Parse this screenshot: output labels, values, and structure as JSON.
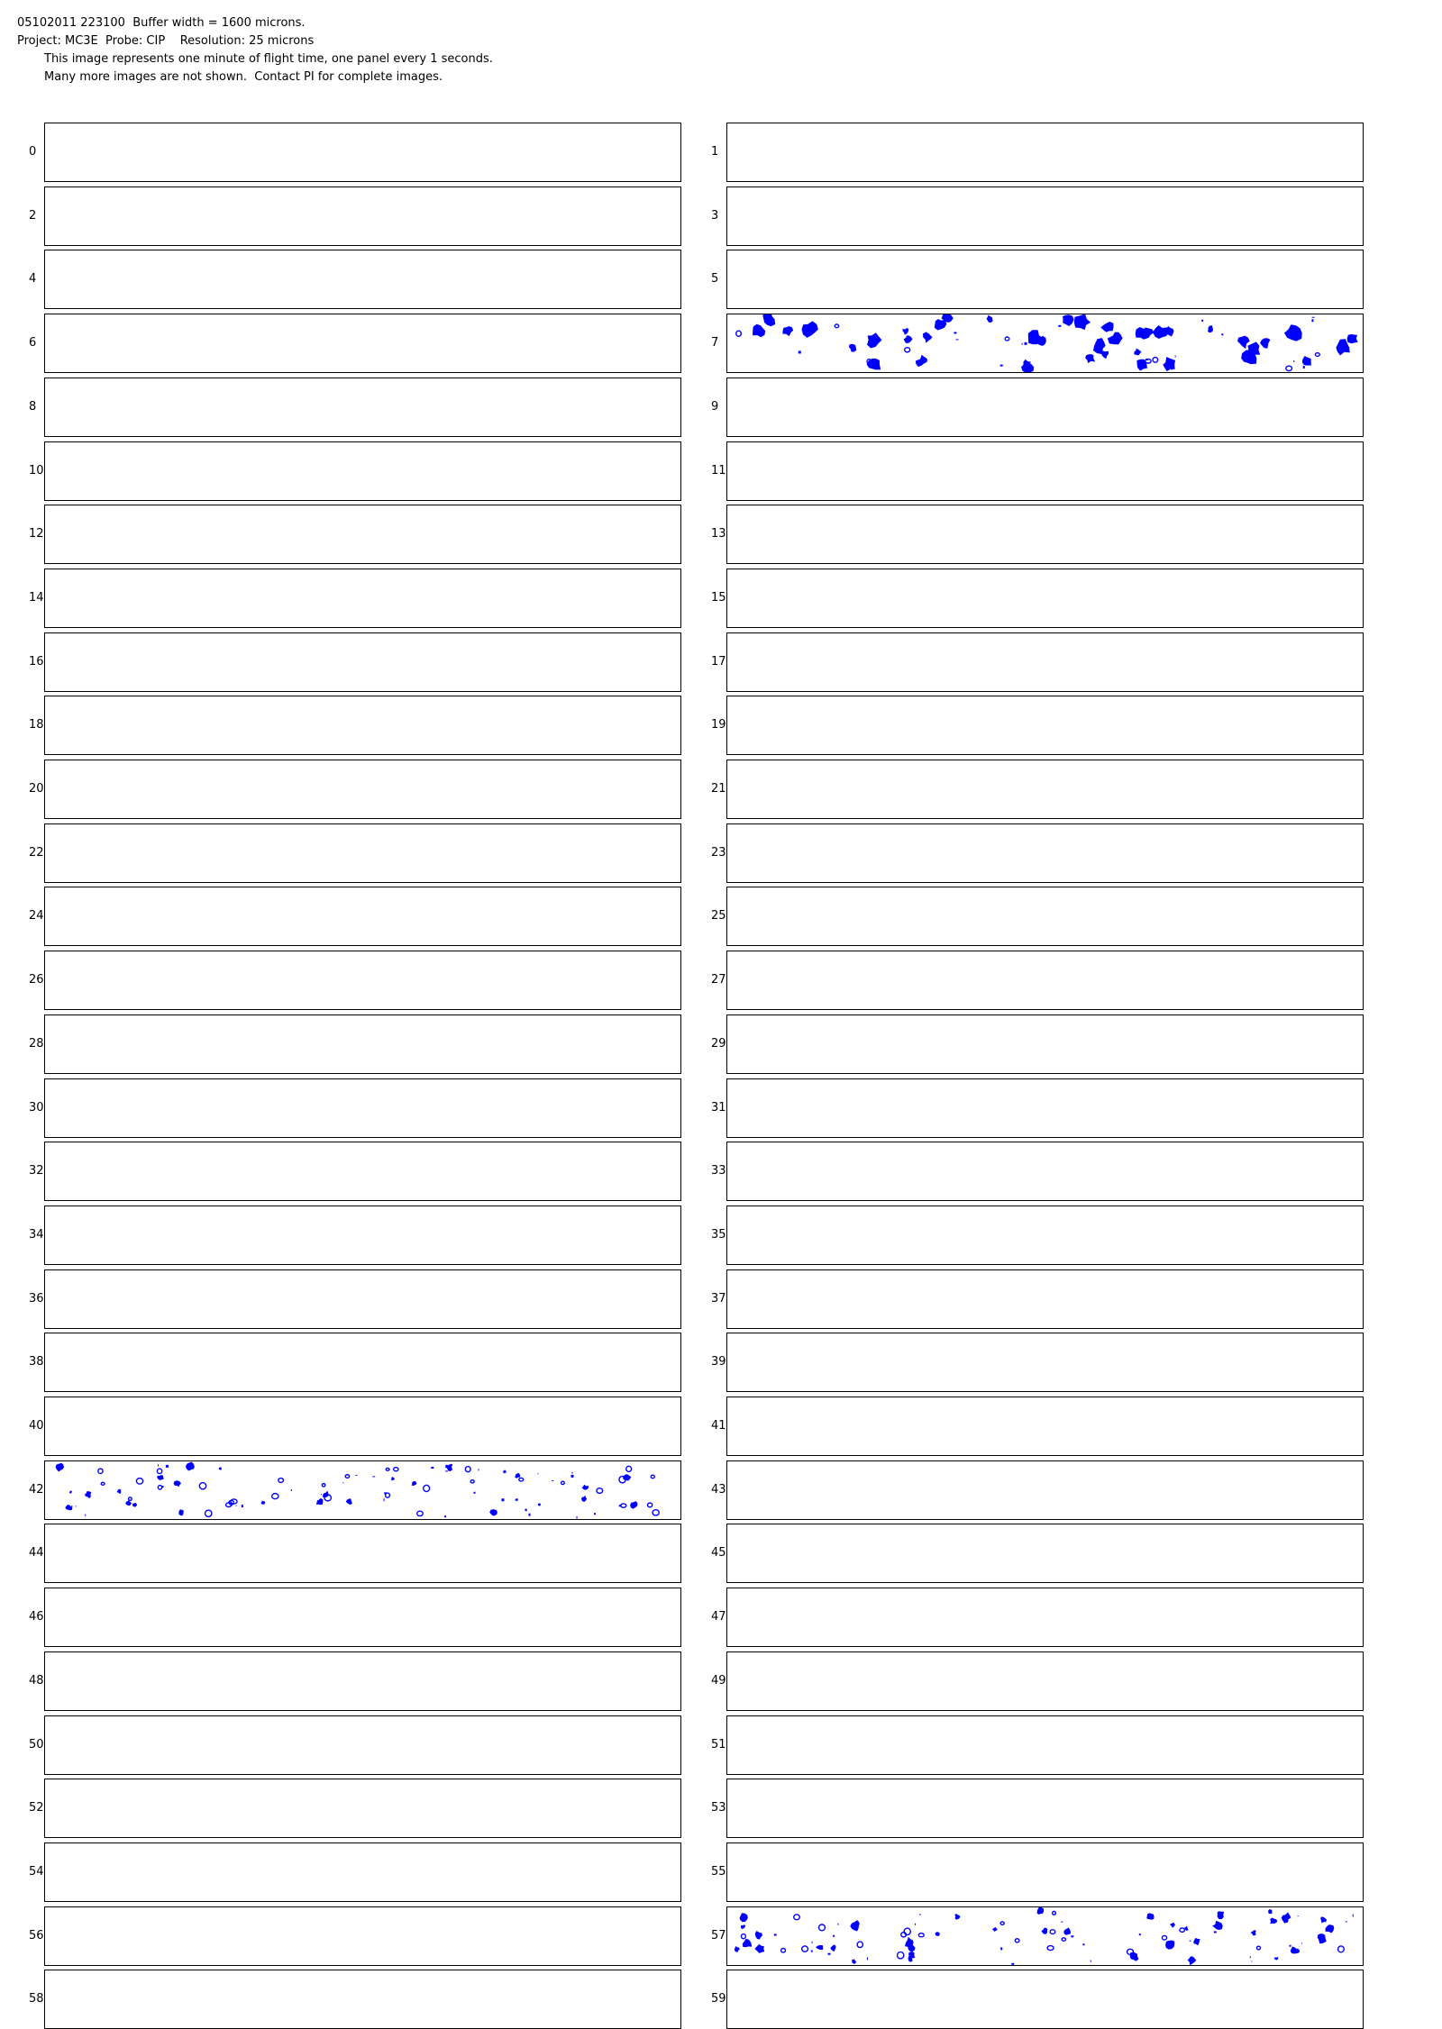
{
  "header": {
    "line1": "05102011 223100  Buffer width = 1600 microns.",
    "line2": "Project: MC3E  Probe: CIP    Resolution: 25 microns",
    "line3": "This image represents one minute of flight time, one panel every 1 seconds.",
    "line4": "Many more images are not shown.  Contact PI for complete images."
  },
  "colors": {
    "particle": "#0000ff",
    "border": "#000000",
    "background": "#ffffff"
  },
  "panels": [
    {
      "num": "0"
    },
    {
      "num": "1"
    },
    {
      "num": "2"
    },
    {
      "num": "3"
    },
    {
      "num": "4"
    },
    {
      "num": "5"
    },
    {
      "num": "6"
    },
    {
      "num": "7",
      "particles": "dense-large"
    },
    {
      "num": "8"
    },
    {
      "num": "9"
    },
    {
      "num": "10"
    },
    {
      "num": "11"
    },
    {
      "num": "12"
    },
    {
      "num": "13"
    },
    {
      "num": "14"
    },
    {
      "num": "15"
    },
    {
      "num": "16"
    },
    {
      "num": "17"
    },
    {
      "num": "18"
    },
    {
      "num": "19"
    },
    {
      "num": "20"
    },
    {
      "num": "21"
    },
    {
      "num": "22"
    },
    {
      "num": "23"
    },
    {
      "num": "24"
    },
    {
      "num": "25"
    },
    {
      "num": "26"
    },
    {
      "num": "27"
    },
    {
      "num": "28"
    },
    {
      "num": "29"
    },
    {
      "num": "30"
    },
    {
      "num": "31"
    },
    {
      "num": "32"
    },
    {
      "num": "33"
    },
    {
      "num": "34"
    },
    {
      "num": "35"
    },
    {
      "num": "36"
    },
    {
      "num": "37"
    },
    {
      "num": "38"
    },
    {
      "num": "39"
    },
    {
      "num": "40"
    },
    {
      "num": "41"
    },
    {
      "num": "42",
      "particles": "mixed-small"
    },
    {
      "num": "43"
    },
    {
      "num": "44"
    },
    {
      "num": "45"
    },
    {
      "num": "46"
    },
    {
      "num": "47"
    },
    {
      "num": "48"
    },
    {
      "num": "49"
    },
    {
      "num": "50"
    },
    {
      "num": "51"
    },
    {
      "num": "52"
    },
    {
      "num": "53"
    },
    {
      "num": "54"
    },
    {
      "num": "55"
    },
    {
      "num": "56"
    },
    {
      "num": "57",
      "particles": "mixed-medium"
    },
    {
      "num": "58"
    },
    {
      "num": "59"
    }
  ]
}
